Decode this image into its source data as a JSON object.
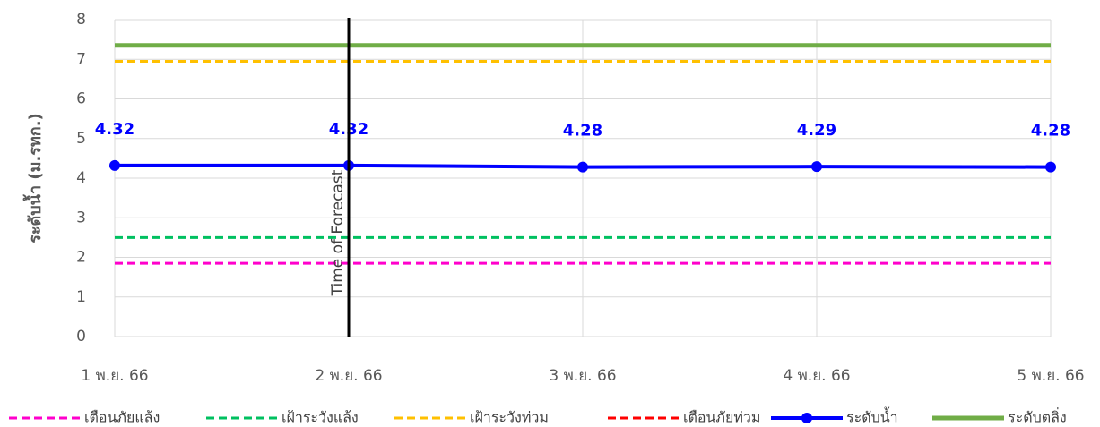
{
  "chart_data": {
    "type": "line",
    "y_label": "ระดับน้ำ (ม.รทก.)",
    "categories": [
      "1 พ.ย. 66",
      "2 พ.ย. 66",
      "3 พ.ย. 66",
      "4 พ.ย. 66",
      "5 พ.ย. 66"
    ],
    "ylim": [
      0,
      8
    ],
    "yticks": [
      0,
      1,
      2,
      3,
      4,
      5,
      6,
      7,
      8
    ],
    "grid": true,
    "legend": "bottom",
    "annotation": {
      "text": "Time of Forecast",
      "at": "2 พ.ย. 66"
    },
    "series": [
      {
        "name": "เตือนภัยแล้ง",
        "color": "#ff00cc",
        "dashed": true,
        "values": [
          1.85,
          1.85,
          1.85,
          1.85,
          1.85
        ]
      },
      {
        "name": "เฝ้าระวังแล้ง",
        "color": "#00c060",
        "dashed": true,
        "values": [
          2.5,
          2.5,
          2.5,
          2.5,
          2.5
        ]
      },
      {
        "name": "เฝ้าระวังท่วม",
        "color": "#ffc000",
        "dashed": true,
        "values": [
          6.95,
          6.95,
          6.95,
          6.95,
          6.95
        ]
      },
      {
        "name": "เตือนภัยท่วม",
        "color": "#ff0000",
        "dashed": true,
        "values": [
          null,
          null,
          null,
          null,
          null
        ]
      },
      {
        "name": "ระดับน้ำ",
        "color": "#0000ff",
        "markers": true,
        "data_labels": true,
        "values": [
          4.32,
          4.32,
          4.28,
          4.29,
          4.28
        ]
      },
      {
        "name": "ระดับตลิ่ง",
        "color": "#70ad47",
        "values": [
          7.35,
          7.35,
          7.35,
          7.35,
          7.35
        ]
      }
    ]
  }
}
